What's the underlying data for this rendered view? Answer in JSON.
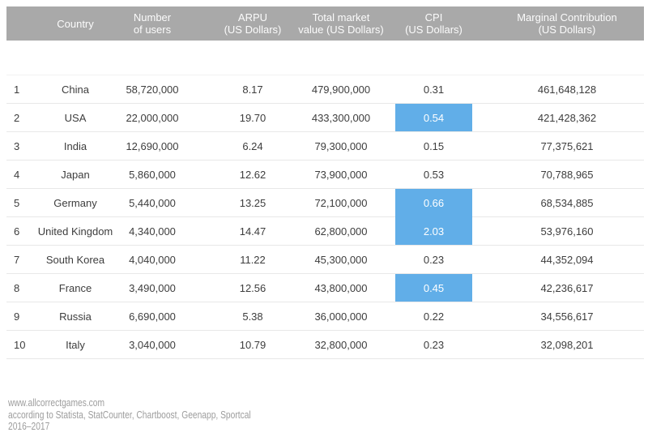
{
  "colors": {
    "header_bg": "#a9a9a9",
    "header_text": "#fbfbfb",
    "highlight": "#61aee8",
    "highlight_text": "#ffffff",
    "row_divider": "#e8e8e8",
    "body_text": "#3d3d3d",
    "footer_text": "#9d9d9d"
  },
  "chart_data": {
    "type": "table",
    "title": "",
    "columns": [
      {
        "key": "rank",
        "label": ""
      },
      {
        "key": "country",
        "label": "Country"
      },
      {
        "key": "users",
        "label": "Number\nof users"
      },
      {
        "key": "arpu",
        "label": "ARPU\n(US Dollars)"
      },
      {
        "key": "market",
        "label": "Total market\nvalue (US Dollars)"
      },
      {
        "key": "cpi",
        "label": "CPI\n(US Dollars)"
      },
      {
        "key": "marginal",
        "label": "Marginal Contribution\n(US Dollars)"
      }
    ],
    "rows": [
      {
        "rank": "1",
        "country": "China",
        "users": "58,720,000",
        "arpu": "8.17",
        "market": "479,900,000",
        "cpi": "0.31",
        "marginal": "461,648,128",
        "cpi_highlight": false,
        "cpi_join_below": false
      },
      {
        "rank": "2",
        "country": "USA",
        "users": "22,000,000",
        "arpu": "19.70",
        "market": "433,300,000",
        "cpi": "0.54",
        "marginal": "421,428,362",
        "cpi_highlight": true,
        "cpi_join_below": false
      },
      {
        "rank": "3",
        "country": "India",
        "users": "12,690,000",
        "arpu": "6.24",
        "market": "79,300,000",
        "cpi": "0.15",
        "marginal": "77,375,621",
        "cpi_highlight": false,
        "cpi_join_below": false
      },
      {
        "rank": "4",
        "country": "Japan",
        "users": "5,860,000",
        "arpu": "12.62",
        "market": "73,900,000",
        "cpi": "0.53",
        "marginal": "70,788,965",
        "cpi_highlight": false,
        "cpi_join_below": false
      },
      {
        "rank": "5",
        "country": "Germany",
        "users": "5,440,000",
        "arpu": "13.25",
        "market": "72,100,000",
        "cpi": "0.66",
        "marginal": "68,534,885",
        "cpi_highlight": true,
        "cpi_join_below": true
      },
      {
        "rank": "6",
        "country": "United Kingdom",
        "users": "4,340,000",
        "arpu": "14.47",
        "market": "62,800,000",
        "cpi": "2.03",
        "marginal": "53,976,160",
        "cpi_highlight": true,
        "cpi_join_below": false
      },
      {
        "rank": "7",
        "country": "South Korea",
        "users": "4,040,000",
        "arpu": "11.22",
        "market": "45,300,000",
        "cpi": "0.23",
        "marginal": "44,352,094",
        "cpi_highlight": false,
        "cpi_join_below": false
      },
      {
        "rank": "8",
        "country": "France",
        "users": "3,490,000",
        "arpu": "12.56",
        "market": "43,800,000",
        "cpi": "0.45",
        "marginal": "42,236,617",
        "cpi_highlight": true,
        "cpi_join_below": false
      },
      {
        "rank": "9",
        "country": "Russia",
        "users": "6,690,000",
        "arpu": "5.38",
        "market": "36,000,000",
        "cpi": "0.22",
        "marginal": "34,556,617",
        "cpi_highlight": false,
        "cpi_join_below": false
      },
      {
        "rank": "10",
        "country": "Italy",
        "users": "3,040,000",
        "arpu": "10.79",
        "market": "32,800,000",
        "cpi": "0.23",
        "marginal": "32,098,201",
        "cpi_highlight": false,
        "cpi_join_below": false
      }
    ],
    "highlighted_cpi_countries": [
      "USA",
      "Germany",
      "United Kingdom",
      "France"
    ],
    "layout_hints": {
      "header_row": true,
      "grid": "horizontal-dividers",
      "legend": "none"
    }
  },
  "footer": {
    "lines": [
      "www.allcorrectgames.com",
      "according to Statista, StatCounter, Chartboost, Geenapp, Sportcal",
      "2016–2017"
    ]
  }
}
